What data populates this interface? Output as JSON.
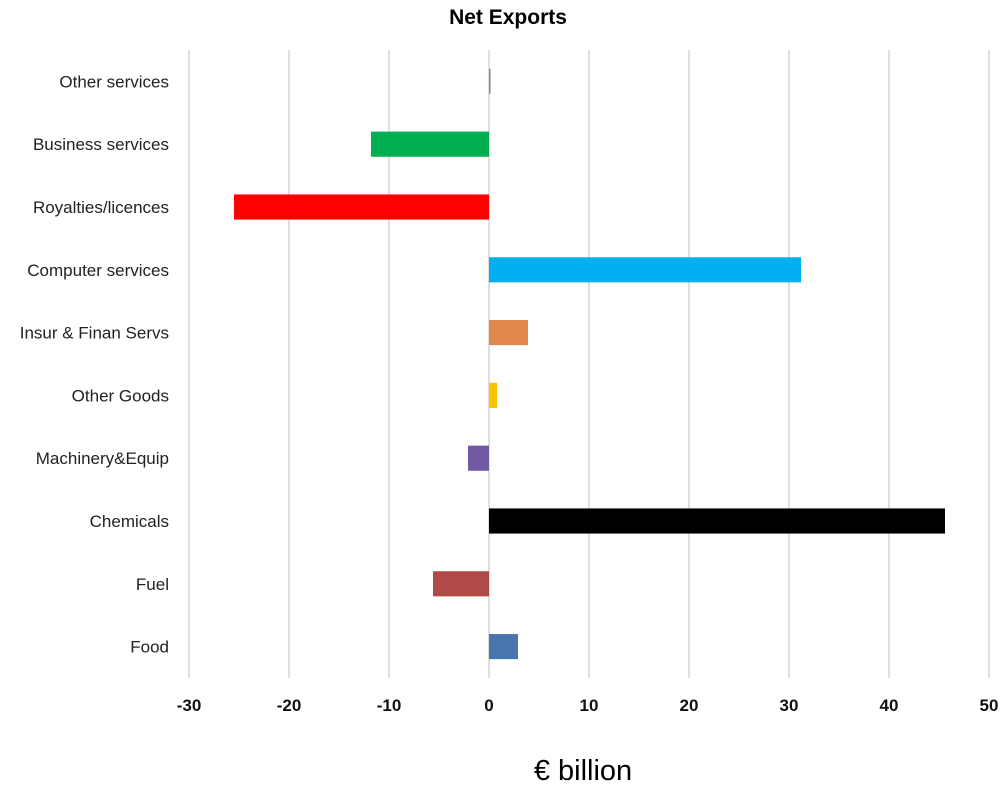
{
  "chart_data": {
    "type": "bar",
    "orientation": "horizontal",
    "title": "Net Exports",
    "xlabel": "€ billion",
    "ylabel": "",
    "xlim": [
      -30,
      50
    ],
    "xticks": [
      "-30",
      "-20",
      "-10",
      "0",
      "10",
      "20",
      "30",
      "40",
      "50"
    ],
    "grid": true,
    "categories": [
      "Other services",
      "Business services",
      "Royalties/licences",
      "Computer services",
      "Insur & Finan Servs",
      "Other Goods",
      "Machinery&Equip",
      "Chemicals",
      "Fuel",
      "Food"
    ],
    "values": [
      0.1,
      -11.8,
      -25.5,
      31.2,
      3.9,
      0.8,
      -2.1,
      45.6,
      -5.6,
      2.9
    ],
    "colors": [
      "#8f7fb0",
      "#00b050",
      "#ff0000",
      "#00b0f0",
      "#e0884b",
      "#ffc000",
      "#7159a3",
      "#000000",
      "#b14a47",
      "#4a74ae"
    ]
  }
}
